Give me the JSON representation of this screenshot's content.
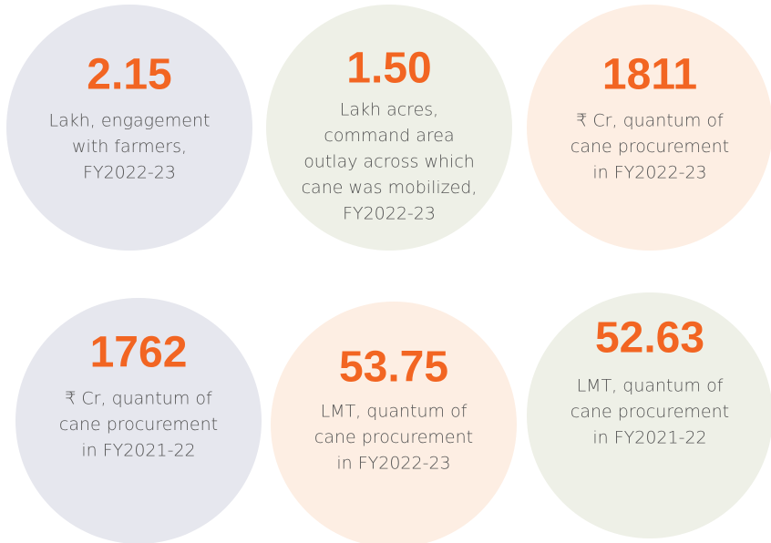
{
  "stats": [
    {
      "value": "2.15",
      "caption": [
        "Lakh, engagement",
        "with farmers,",
        "FY2022-23"
      ]
    },
    {
      "value": "1.50",
      "caption": [
        "Lakh acres,",
        "command area",
        "outlay across which",
        "cane was mobilized,",
        "FY2022-23"
      ]
    },
    {
      "value": "1811",
      "caption": [
        "₹ Cr, quantum of",
        "cane procurement",
        "in FY2022-23"
      ]
    },
    {
      "value": "1762",
      "caption": [
        "₹ Cr, quantum of",
        "cane procurement",
        "in FY2021-22"
      ]
    },
    {
      "value": "53.75",
      "caption": [
        "LMT, quantum of",
        "cane procurement",
        "in FY2022-23"
      ]
    },
    {
      "value": "52.63",
      "caption": [
        "LMT, quantum of",
        "cane procurement",
        "in FY2021-22"
      ]
    }
  ]
}
